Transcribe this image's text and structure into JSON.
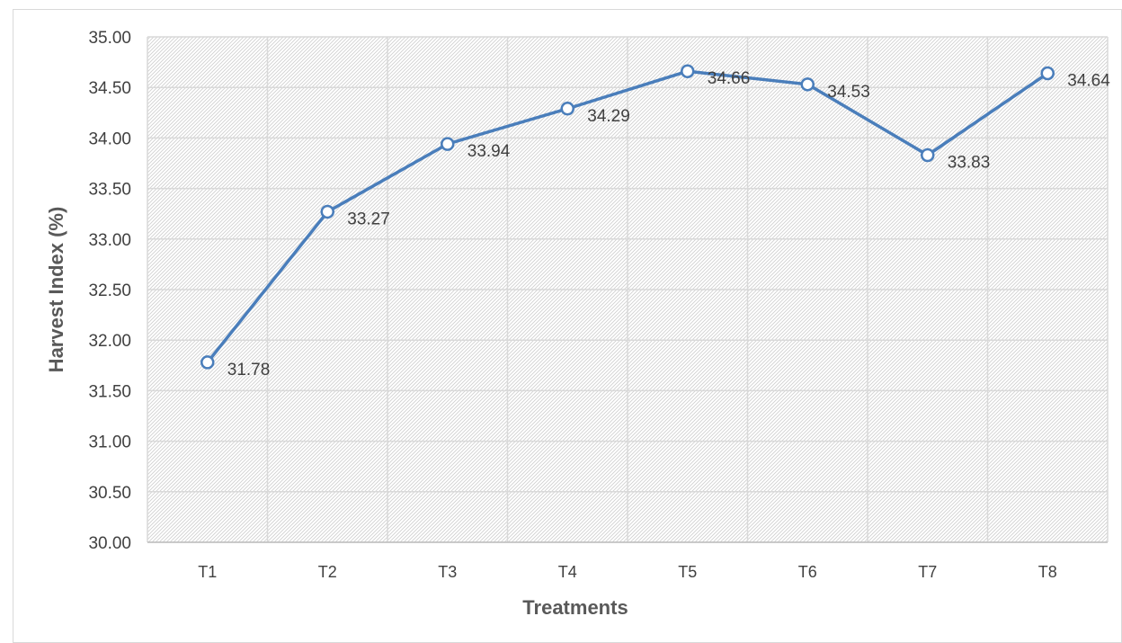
{
  "chart_data": {
    "type": "line",
    "categories": [
      "T1",
      "T2",
      "T3",
      "T4",
      "T5",
      "T6",
      "T7",
      "T8"
    ],
    "series": [
      {
        "values": [
          31.78,
          33.27,
          33.94,
          34.29,
          34.66,
          34.53,
          33.83,
          34.64
        ]
      }
    ],
    "data_labels": [
      "31.78",
      "33.27",
      "33.94",
      "34.29",
      "34.66",
      "34.53",
      "33.83",
      "34.64"
    ],
    "xlabel": "Treatments",
    "ylabel": "Harvest Index (%)",
    "ylim": [
      30.0,
      35.0
    ],
    "y_ticks": [
      "30.00",
      "30.50",
      "31.00",
      "31.50",
      "32.00",
      "32.50",
      "33.00",
      "33.50",
      "34.00",
      "34.50",
      "35.00"
    ],
    "grid": true,
    "plot_background": "hatched",
    "line_color": "#4a7ebb",
    "marker": "hollow-circle"
  }
}
